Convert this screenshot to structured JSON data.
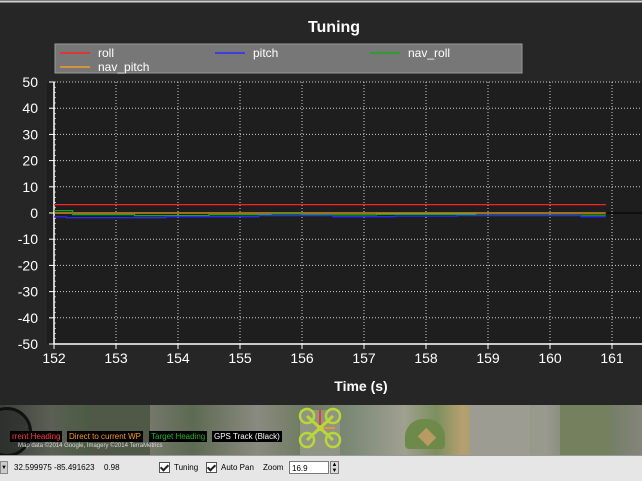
{
  "chart_data": {
    "type": "line",
    "title": "Tuning",
    "xlabel": "Time (s)",
    "ylabel": "",
    "xlim": [
      152,
      161
    ],
    "ylim": [
      -50,
      50
    ],
    "xticks": [
      "152",
      "153",
      "154",
      "155",
      "156",
      "157",
      "158",
      "159",
      "160",
      "161"
    ],
    "yticks": [
      "50",
      "40",
      "30",
      "20",
      "10",
      "0",
      "-10",
      "-20",
      "-30",
      "-40",
      "-50"
    ],
    "grid": true,
    "legend_position": "top",
    "series": [
      {
        "name": "roll",
        "color": "#ff2020",
        "x": [
          152.0,
          160.9
        ],
        "y": [
          3.2,
          3.2
        ]
      },
      {
        "name": "pitch",
        "color": "#2a2aff",
        "x": [
          152.0,
          152.2,
          152.2,
          153.8,
          153.8,
          155.3,
          155.3,
          156.5,
          156.5,
          157.5,
          157.5,
          158.5,
          158.5,
          160.5,
          160.5,
          160.9
        ],
        "y": [
          -1.5,
          -1.5,
          -1.8,
          -1.8,
          -1.4,
          -1.4,
          -1.0,
          -1.0,
          -1.4,
          -1.4,
          -1.2,
          -1.2,
          -1.0,
          -1.0,
          -1.4,
          -1.4
        ]
      },
      {
        "name": "nav_roll",
        "color": "#1aa51a",
        "x": [
          152.0,
          152.3,
          152.3,
          153.3,
          153.3,
          154.5,
          154.5,
          155.5,
          155.5,
          156.0,
          156.0,
          157.2,
          157.2,
          158.8,
          158.8,
          160.9
        ],
        "y": [
          0.9,
          0.9,
          -0.6,
          -0.6,
          -1.0,
          -1.0,
          -0.6,
          -0.6,
          -0.3,
          -0.3,
          -0.7,
          -0.7,
          -0.5,
          -0.5,
          -0.8,
          -0.8
        ]
      },
      {
        "name": "nav_pitch",
        "color": "#f0a020",
        "x": [
          152.0,
          160.9
        ],
        "y": [
          0.0,
          0.0
        ]
      }
    ]
  },
  "map": {
    "badges": {
      "current_heading": "rrent Heading",
      "direct_wp": "Direct to current WP",
      "target_heading": "Target Heading",
      "gps_track": "GPS Track (Black)"
    },
    "copyright": "Map data ©2014 Google, Imagery ©2014 TerraMetrics"
  },
  "status_bar": {
    "coords": "32.599975 -85.491623",
    "alt": "0.98",
    "tuning_label": "Tuning",
    "tuning_checked": true,
    "autopan_label": "Auto Pan",
    "autopan_checked": true,
    "zoom_label": "Zoom",
    "zoom_value": "16.9"
  },
  "colors": {
    "chart_bg": "#1e1e1e",
    "panel_bg": "#262626",
    "legend_bg": "#777777"
  }
}
